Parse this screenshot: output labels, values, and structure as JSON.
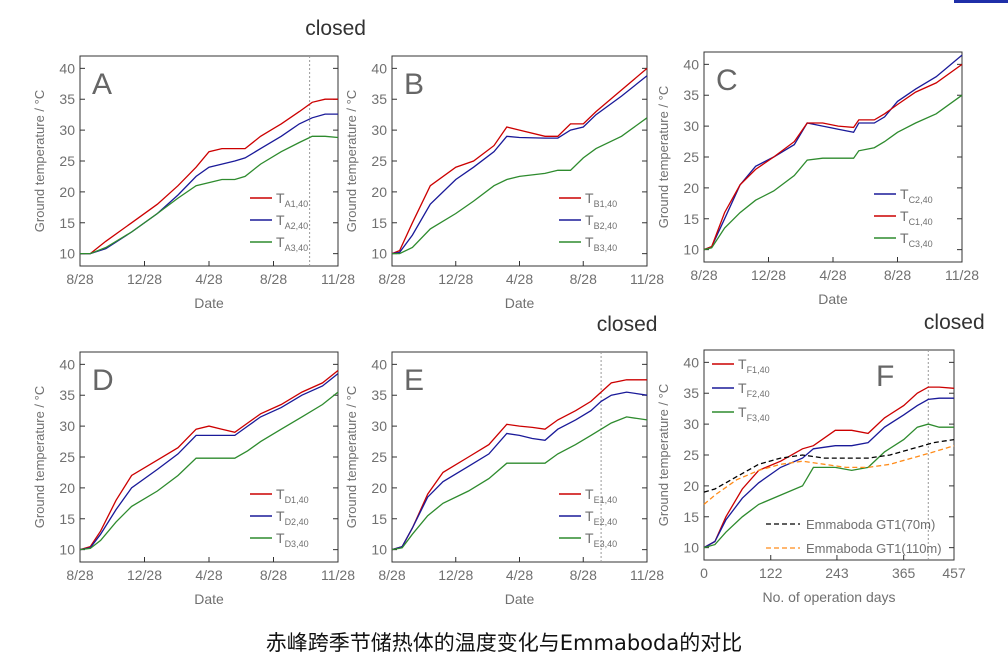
{
  "caption": "赤峰跨季节储热体的温度变化与Emmaboda的对比",
  "colors": {
    "red": "#cc0000",
    "blue": "#1a1a99",
    "green": "#2e8b2e",
    "black": "#000000",
    "orange": "#ff8c1a"
  },
  "chart_data": [
    {
      "type": "line",
      "panel": "A",
      "closed_label": "closed",
      "closed_at": 0.89,
      "xlabel": "Date",
      "ylabel": "Ground temperature / °C",
      "x_ticks": [
        "8/28",
        "12/28",
        "4/28",
        "8/28",
        "11/28"
      ],
      "xlim": [
        0,
        1
      ],
      "ylim": [
        8,
        42
      ],
      "y_ticks": [
        10,
        15,
        20,
        25,
        30,
        35,
        40
      ],
      "legend": "right",
      "series": [
        {
          "name": "TA1,40",
          "label_main": "T",
          "label_sub": "A1,40",
          "color": "#cc0000",
          "x": [
            0,
            0.04,
            0.1,
            0.2,
            0.3,
            0.38,
            0.45,
            0.5,
            0.55,
            0.6,
            0.64,
            0.7,
            0.78,
            0.85,
            0.9,
            0.95,
            1
          ],
          "y": [
            10,
            10,
            12,
            15,
            18,
            21,
            24,
            26.5,
            27,
            27,
            27,
            29,
            31,
            33,
            34.5,
            35,
            35
          ]
        },
        {
          "name": "TA2,40",
          "label_main": "T",
          "label_sub": "A2,40",
          "color": "#1a1a99",
          "x": [
            0,
            0.04,
            0.1,
            0.2,
            0.3,
            0.38,
            0.45,
            0.5,
            0.55,
            0.6,
            0.64,
            0.7,
            0.78,
            0.85,
            0.9,
            0.95,
            1
          ],
          "y": [
            10,
            10,
            10.8,
            13.5,
            16.5,
            19.5,
            22.5,
            24,
            24.5,
            25,
            25.5,
            27,
            29,
            31,
            32,
            32.6,
            32.6
          ]
        },
        {
          "name": "TA3,40",
          "label_main": "T",
          "label_sub": "A3,40",
          "color": "#2e8b2e",
          "x": [
            0,
            0.04,
            0.1,
            0.2,
            0.3,
            0.38,
            0.45,
            0.5,
            0.55,
            0.6,
            0.64,
            0.7,
            0.78,
            0.85,
            0.9,
            0.95,
            1
          ],
          "y": [
            10,
            10,
            11,
            13.5,
            16.5,
            19,
            21,
            21.5,
            22,
            22,
            22.5,
            24.5,
            26.5,
            28,
            29,
            29,
            28.8
          ]
        }
      ]
    },
    {
      "type": "line",
      "panel": "B",
      "xlabel": "Date",
      "ylabel": "Ground temperature / °C",
      "x_ticks": [
        "8/28",
        "12/28",
        "4/28",
        "8/28",
        "11/28"
      ],
      "xlim": [
        0,
        1
      ],
      "ylim": [
        8,
        42
      ],
      "y_ticks": [
        10,
        15,
        20,
        25,
        30,
        35,
        40
      ],
      "legend": "right",
      "series": [
        {
          "name": "TB1,40",
          "label_main": "T",
          "label_sub": "B1,40",
          "color": "#cc0000",
          "x": [
            0,
            0.03,
            0.08,
            0.15,
            0.25,
            0.32,
            0.4,
            0.45,
            0.5,
            0.6,
            0.65,
            0.7,
            0.75,
            0.8,
            0.9,
            1
          ],
          "y": [
            10,
            10.5,
            15,
            21,
            24,
            25,
            27.5,
            30.5,
            30,
            29,
            29,
            31,
            31,
            33,
            36.5,
            40
          ]
        },
        {
          "name": "TB2,40",
          "label_main": "T",
          "label_sub": "B2,40",
          "color": "#1a1a99",
          "x": [
            0,
            0.03,
            0.08,
            0.15,
            0.25,
            0.32,
            0.4,
            0.45,
            0.5,
            0.6,
            0.65,
            0.7,
            0.75,
            0.8,
            0.9,
            1
          ],
          "y": [
            10,
            10.2,
            13,
            18,
            22,
            24,
            26.5,
            29,
            28.8,
            28.7,
            28.7,
            30,
            30.5,
            32.5,
            35.5,
            38.8
          ]
        },
        {
          "name": "TB3,40",
          "label_main": "T",
          "label_sub": "B3,40",
          "color": "#2e8b2e",
          "x": [
            0,
            0.03,
            0.08,
            0.15,
            0.25,
            0.32,
            0.4,
            0.45,
            0.5,
            0.6,
            0.65,
            0.7,
            0.75,
            0.8,
            0.9,
            1
          ],
          "y": [
            10,
            10,
            11,
            14,
            16.5,
            18.5,
            21,
            22,
            22.5,
            23,
            23.5,
            23.5,
            25.5,
            27,
            29,
            32
          ]
        }
      ]
    },
    {
      "type": "line",
      "panel": "C",
      "xlabel": "Date",
      "ylabel": "Ground temperature / °C",
      "x_ticks": [
        "8/28",
        "12/28",
        "4/28",
        "8/28",
        "11/28"
      ],
      "xlim": [
        0,
        1
      ],
      "ylim": [
        8,
        42
      ],
      "y_ticks": [
        10,
        15,
        20,
        25,
        30,
        35,
        40
      ],
      "legend": "right",
      "series": [
        {
          "name": "TC2,40",
          "label_main": "T",
          "label_sub": "C2,40",
          "color": "#1a1a99",
          "x": [
            0,
            0.03,
            0.08,
            0.14,
            0.2,
            0.27,
            0.35,
            0.4,
            0.46,
            0.52,
            0.58,
            0.6,
            0.66,
            0.7,
            0.75,
            0.82,
            0.9,
            1
          ],
          "y": [
            10,
            10.5,
            15,
            20.5,
            23.5,
            25,
            27,
            30.5,
            30,
            29.5,
            29,
            30.5,
            30.5,
            31.5,
            34,
            36,
            38,
            41.5
          ]
        },
        {
          "name": "TC1,40",
          "label_main": "T",
          "label_sub": "C1,40",
          "color": "#cc0000",
          "x": [
            0,
            0.03,
            0.08,
            0.14,
            0.2,
            0.27,
            0.35,
            0.4,
            0.46,
            0.52,
            0.58,
            0.6,
            0.66,
            0.7,
            0.75,
            0.82,
            0.9,
            1
          ],
          "y": [
            10,
            10.5,
            16,
            20.5,
            23,
            25,
            27.5,
            30.5,
            30.5,
            30,
            29.8,
            31,
            31,
            32,
            33.5,
            35.5,
            37,
            40
          ]
        },
        {
          "name": "TC3,40",
          "label_main": "T",
          "label_sub": "C3,40",
          "color": "#2e8b2e",
          "x": [
            0,
            0.03,
            0.08,
            0.14,
            0.2,
            0.27,
            0.35,
            0.4,
            0.46,
            0.52,
            0.58,
            0.6,
            0.66,
            0.7,
            0.75,
            0.82,
            0.9,
            1
          ],
          "y": [
            10,
            10.3,
            13.5,
            16,
            18,
            19.5,
            22,
            24.5,
            24.8,
            24.8,
            24.8,
            26,
            26.5,
            27.5,
            29,
            30.5,
            32,
            35
          ]
        }
      ]
    },
    {
      "type": "line",
      "panel": "D",
      "xlabel": "Date",
      "ylabel": "Ground temperature / °C",
      "x_ticks": [
        "8/28",
        "12/28",
        "4/28",
        "8/28",
        "11/28"
      ],
      "xlim": [
        0,
        1
      ],
      "ylim": [
        8,
        42
      ],
      "y_ticks": [
        10,
        15,
        20,
        25,
        30,
        35,
        40
      ],
      "legend": "right",
      "series": [
        {
          "name": "TD1,40",
          "label_main": "T",
          "label_sub": "D1,40",
          "color": "#cc0000",
          "x": [
            0,
            0.04,
            0.08,
            0.14,
            0.2,
            0.3,
            0.38,
            0.45,
            0.5,
            0.55,
            0.6,
            0.65,
            0.7,
            0.78,
            0.86,
            0.94,
            1
          ],
          "y": [
            10,
            10.5,
            13,
            18,
            22,
            24.5,
            26.5,
            29.5,
            30,
            29.5,
            29,
            30.5,
            32,
            33.5,
            35.5,
            37,
            39
          ]
        },
        {
          "name": "TD2,40",
          "label_main": "T",
          "label_sub": "D2,40",
          "color": "#1a1a99",
          "x": [
            0,
            0.04,
            0.08,
            0.14,
            0.2,
            0.3,
            0.38,
            0.45,
            0.5,
            0.55,
            0.6,
            0.65,
            0.7,
            0.78,
            0.86,
            0.94,
            1
          ],
          "y": [
            10,
            10.3,
            12.5,
            16.5,
            20,
            23,
            25.5,
            28.5,
            28.5,
            28.5,
            28.5,
            30,
            31.5,
            33,
            35,
            36.5,
            38.5
          ]
        },
        {
          "name": "TD3,40",
          "label_main": "T",
          "label_sub": "D3,40",
          "color": "#2e8b2e",
          "x": [
            0,
            0.04,
            0.08,
            0.14,
            0.2,
            0.3,
            0.38,
            0.45,
            0.5,
            0.55,
            0.6,
            0.65,
            0.7,
            0.78,
            0.86,
            0.94,
            1
          ],
          "y": [
            10,
            10.2,
            11.5,
            14.5,
            17,
            19.5,
            22,
            24.8,
            24.8,
            24.8,
            24.8,
            26,
            27.5,
            29.5,
            31.5,
            33.5,
            35.5
          ]
        }
      ]
    },
    {
      "type": "line",
      "panel": "E",
      "closed_label": "closed",
      "closed_at": 0.82,
      "xlabel": "Date",
      "ylabel": "Ground temperature / °C",
      "x_ticks": [
        "8/28",
        "12/28",
        "4/28",
        "8/28",
        "11/28"
      ],
      "xlim": [
        0,
        1
      ],
      "ylim": [
        8,
        42
      ],
      "y_ticks": [
        10,
        15,
        20,
        25,
        30,
        35,
        40
      ],
      "legend": "right",
      "series": [
        {
          "name": "TE1,40",
          "label_main": "T",
          "label_sub": "E1,40",
          "color": "#cc0000",
          "x": [
            0,
            0.04,
            0.08,
            0.14,
            0.2,
            0.3,
            0.38,
            0.45,
            0.5,
            0.55,
            0.6,
            0.65,
            0.72,
            0.78,
            0.82,
            0.86,
            0.92,
            1
          ],
          "y": [
            10,
            10.5,
            13.5,
            19,
            22.5,
            25,
            27,
            30.3,
            30,
            29.8,
            29.5,
            31,
            32.5,
            34,
            35.5,
            37,
            37.5,
            37.5
          ]
        },
        {
          "name": "TE2,40",
          "label_main": "T",
          "label_sub": "E2,40",
          "color": "#1a1a99",
          "x": [
            0,
            0.04,
            0.08,
            0.14,
            0.2,
            0.3,
            0.38,
            0.45,
            0.5,
            0.55,
            0.6,
            0.65,
            0.72,
            0.78,
            0.82,
            0.86,
            0.92,
            1
          ],
          "y": [
            10,
            10.5,
            13.5,
            18.5,
            21,
            23.5,
            25.5,
            28.8,
            28.5,
            28,
            27.7,
            29.5,
            31,
            32.5,
            34,
            35,
            35.5,
            35
          ]
        },
        {
          "name": "TE3,40",
          "label_main": "T",
          "label_sub": "E3,40",
          "color": "#2e8b2e",
          "x": [
            0,
            0.04,
            0.08,
            0.14,
            0.2,
            0.3,
            0.38,
            0.45,
            0.5,
            0.55,
            0.6,
            0.65,
            0.72,
            0.78,
            0.82,
            0.86,
            0.92,
            1
          ],
          "y": [
            10,
            10.3,
            12.5,
            15.5,
            17.5,
            19.5,
            21.5,
            24,
            24,
            24,
            24,
            25.5,
            27,
            28.5,
            29.5,
            30.5,
            31.5,
            31
          ]
        }
      ]
    },
    {
      "type": "line",
      "panel": "F",
      "closed_label": "closed",
      "closed_at": 410,
      "xlabel": "No. of operation days",
      "ylabel": "Ground temperature / °C",
      "x_ticks": [
        "0",
        "122",
        "243",
        "365",
        "457"
      ],
      "x_tick_values": [
        0,
        122,
        243,
        365,
        457
      ],
      "xlim": [
        0,
        457
      ],
      "ylim": [
        8,
        42
      ],
      "y_ticks": [
        10,
        15,
        20,
        25,
        30,
        35,
        40
      ],
      "legend": "top-left",
      "series": [
        {
          "name": "TF1,40",
          "label_main": "T",
          "label_sub": "F1,40",
          "color": "#cc0000",
          "dashed": false,
          "x": [
            0,
            20,
            40,
            70,
            100,
            140,
            180,
            200,
            240,
            270,
            300,
            330,
            365,
            390,
            410,
            430,
            457
          ],
          "y": [
            10,
            11,
            15,
            19.5,
            22.5,
            24,
            26,
            26.5,
            29,
            29,
            28.5,
            31,
            33,
            35,
            36,
            36,
            35.8
          ]
        },
        {
          "name": "TF2,40",
          "label_main": "T",
          "label_sub": "F2,40",
          "color": "#1a1a99",
          "dashed": false,
          "x": [
            0,
            20,
            40,
            70,
            100,
            140,
            180,
            200,
            240,
            270,
            300,
            330,
            365,
            390,
            410,
            430,
            457
          ],
          "y": [
            10,
            11,
            14.5,
            18,
            20.5,
            23,
            24.5,
            26,
            26.5,
            26.5,
            27,
            29.5,
            31.5,
            33,
            34,
            34.2,
            34.2
          ]
        },
        {
          "name": "TF3,40",
          "label_main": "T",
          "label_sub": "F3,40",
          "color": "#2e8b2e",
          "x": [
            0,
            20,
            40,
            70,
            100,
            140,
            180,
            200,
            240,
            270,
            300,
            330,
            365,
            390,
            410,
            430,
            457
          ],
          "y": [
            10,
            10.5,
            12.5,
            15,
            17,
            18.5,
            20,
            23,
            23,
            22.5,
            23,
            25.5,
            27.5,
            29.5,
            30,
            29.5,
            29.5
          ]
        },
        {
          "name": "Emmaboda GT1(70m)",
          "color": "#000000",
          "dashed": true,
          "x": [
            0,
            20,
            60,
            100,
            140,
            180,
            220,
            260,
            300,
            340,
            380,
            420,
            457
          ],
          "y": [
            19,
            19.5,
            21.5,
            23.5,
            24.5,
            25,
            24.5,
            24.5,
            24.5,
            25,
            26,
            27,
            27.5
          ]
        },
        {
          "name": "Emmaboda GT1(110m)",
          "color": "#ff8c1a",
          "dashed": true,
          "x": [
            0,
            20,
            60,
            100,
            140,
            180,
            220,
            260,
            300,
            340,
            380,
            420,
            457
          ],
          "y": [
            17,
            18.5,
            21,
            22.5,
            23.5,
            24,
            23.5,
            23,
            23,
            23.5,
            24.5,
            25.5,
            26.5
          ]
        }
      ]
    }
  ]
}
